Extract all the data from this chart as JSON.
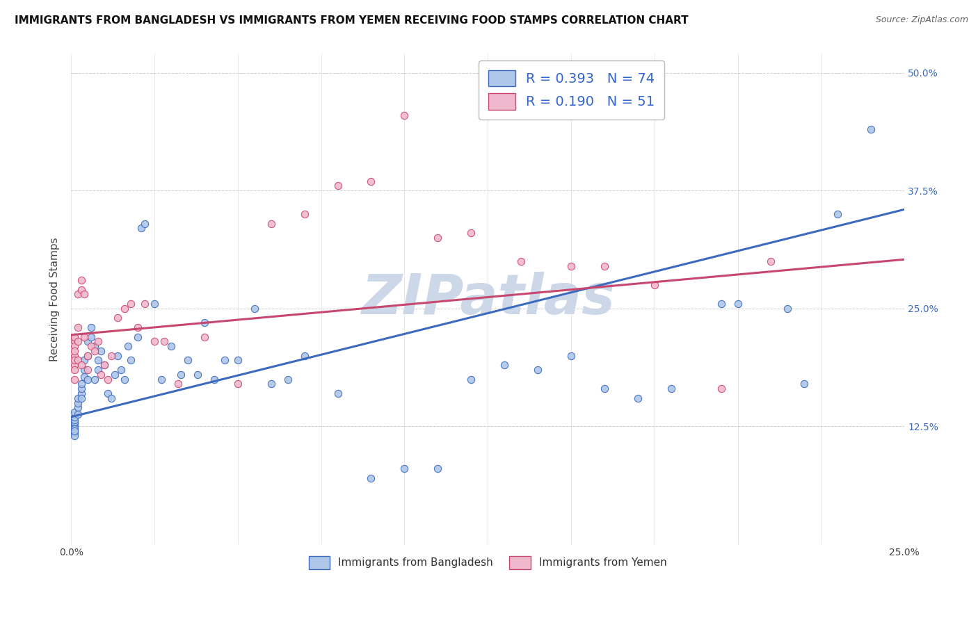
{
  "title": "IMMIGRANTS FROM BANGLADESH VS IMMIGRANTS FROM YEMEN RECEIVING FOOD STAMPS CORRELATION CHART",
  "source": "Source: ZipAtlas.com",
  "ylabel": "Receiving Food Stamps",
  "yticks": [
    "12.5%",
    "25.0%",
    "37.5%",
    "50.0%"
  ],
  "ytick_vals": [
    0.125,
    0.25,
    0.375,
    0.5
  ],
  "xlim": [
    0.0,
    0.25
  ],
  "ylim": [
    0.0,
    0.52
  ],
  "R_bangladesh": 0.393,
  "N_bangladesh": 74,
  "R_yemen": 0.19,
  "N_yemen": 51,
  "color_bangladesh": "#aec6e8",
  "color_yemen": "#f0b8cc",
  "color_line_bangladesh": "#3b6abf",
  "color_line_yemen": "#c8476e",
  "legend_text_color": "#3366cc",
  "watermark": "ZIPatlas",
  "watermark_color": "#ccd8e8",
  "background_color": "#ffffff",
  "title_fontsize": 11,
  "source_fontsize": 9,
  "scatter_size": 55,
  "bangladesh_x": [
    0.001,
    0.001,
    0.001,
    0.001,
    0.001,
    0.001,
    0.001,
    0.001,
    0.001,
    0.001,
    0.002,
    0.002,
    0.002,
    0.002,
    0.003,
    0.003,
    0.003,
    0.003,
    0.004,
    0.004,
    0.004,
    0.005,
    0.005,
    0.005,
    0.006,
    0.006,
    0.007,
    0.007,
    0.008,
    0.008,
    0.009,
    0.01,
    0.011,
    0.012,
    0.013,
    0.014,
    0.015,
    0.016,
    0.017,
    0.018,
    0.02,
    0.021,
    0.022,
    0.025,
    0.027,
    0.03,
    0.033,
    0.035,
    0.038,
    0.04,
    0.043,
    0.046,
    0.05,
    0.055,
    0.06,
    0.065,
    0.07,
    0.08,
    0.09,
    0.1,
    0.11,
    0.12,
    0.13,
    0.14,
    0.15,
    0.16,
    0.17,
    0.18,
    0.195,
    0.2,
    0.215,
    0.22,
    0.23,
    0.24
  ],
  "bangladesh_y": [
    0.125,
    0.128,
    0.13,
    0.122,
    0.118,
    0.132,
    0.135,
    0.14,
    0.115,
    0.12,
    0.145,
    0.15,
    0.155,
    0.138,
    0.16,
    0.165,
    0.155,
    0.17,
    0.178,
    0.185,
    0.195,
    0.2,
    0.215,
    0.175,
    0.22,
    0.23,
    0.175,
    0.21,
    0.195,
    0.185,
    0.205,
    0.19,
    0.16,
    0.155,
    0.18,
    0.2,
    0.185,
    0.175,
    0.21,
    0.195,
    0.22,
    0.335,
    0.34,
    0.255,
    0.175,
    0.21,
    0.18,
    0.195,
    0.18,
    0.235,
    0.175,
    0.195,
    0.195,
    0.25,
    0.17,
    0.175,
    0.2,
    0.16,
    0.07,
    0.08,
    0.08,
    0.175,
    0.19,
    0.185,
    0.2,
    0.165,
    0.155,
    0.165,
    0.255,
    0.255,
    0.25,
    0.17,
    0.35,
    0.44
  ],
  "yemen_x": [
    0.001,
    0.001,
    0.001,
    0.001,
    0.001,
    0.001,
    0.001,
    0.001,
    0.001,
    0.001,
    0.002,
    0.002,
    0.002,
    0.002,
    0.003,
    0.003,
    0.003,
    0.004,
    0.004,
    0.005,
    0.005,
    0.006,
    0.007,
    0.008,
    0.009,
    0.01,
    0.011,
    0.012,
    0.014,
    0.016,
    0.018,
    0.02,
    0.022,
    0.025,
    0.028,
    0.032,
    0.04,
    0.05,
    0.06,
    0.07,
    0.08,
    0.09,
    0.1,
    0.11,
    0.12,
    0.135,
    0.15,
    0.16,
    0.175,
    0.195,
    0.21
  ],
  "yemen_y": [
    0.19,
    0.2,
    0.215,
    0.22,
    0.185,
    0.21,
    0.195,
    0.205,
    0.22,
    0.175,
    0.195,
    0.215,
    0.23,
    0.265,
    0.28,
    0.27,
    0.19,
    0.265,
    0.22,
    0.2,
    0.185,
    0.21,
    0.205,
    0.215,
    0.18,
    0.19,
    0.175,
    0.2,
    0.24,
    0.25,
    0.255,
    0.23,
    0.255,
    0.215,
    0.215,
    0.17,
    0.22,
    0.17,
    0.34,
    0.35,
    0.38,
    0.385,
    0.455,
    0.325,
    0.33,
    0.3,
    0.295,
    0.295,
    0.275,
    0.165,
    0.3
  ],
  "line_b_x0": 0.0,
  "line_b_y0": 0.135,
  "line_b_x1": 0.25,
  "line_b_y1": 0.355,
  "line_y_x0": 0.0,
  "line_y_y0": 0.222,
  "line_y_x1": 0.25,
  "line_y_y1": 0.302
}
